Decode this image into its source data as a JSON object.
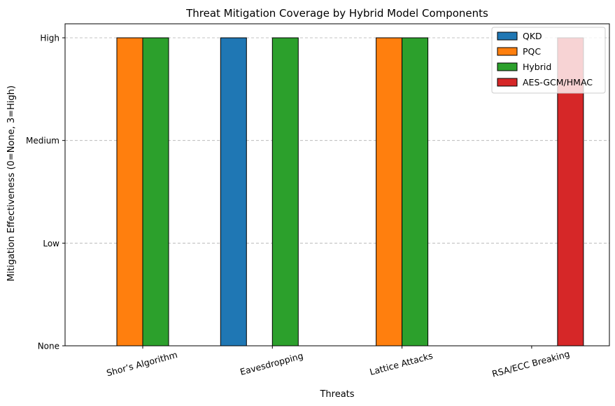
{
  "chart_data": {
    "type": "bar",
    "title": "Threat Mitigation Coverage by Hybrid Model Components",
    "xlabel": "Threats",
    "ylabel": "Mitigation Effectiveness (0=None, 3=High)",
    "categories": [
      "Shor’s Algorithm",
      "Eavesdropping",
      "Lattice Attacks",
      "RSA/ECC Breaking"
    ],
    "ylim": [
      0,
      3
    ],
    "yticks": [
      {
        "value": 0,
        "label": "None"
      },
      {
        "value": 1,
        "label": "Low"
      },
      {
        "value": 2,
        "label": "Medium"
      },
      {
        "value": 3,
        "label": "High"
      }
    ],
    "grid": {
      "y": true,
      "style": "dashed"
    },
    "legend_position": "top-right",
    "series": [
      {
        "name": "QKD",
        "color": "#1f77b4",
        "values": [
          0,
          3,
          0,
          0
        ]
      },
      {
        "name": "PQC",
        "color": "#ff7f0e",
        "values": [
          3,
          0,
          3,
          0
        ]
      },
      {
        "name": "Hybrid",
        "color": "#2ca02c",
        "values": [
          3,
          3,
          3,
          0
        ]
      },
      {
        "name": "AES-GCM/HMAC",
        "color": "#d62728",
        "values": [
          0,
          0,
          0,
          3
        ]
      }
    ]
  }
}
